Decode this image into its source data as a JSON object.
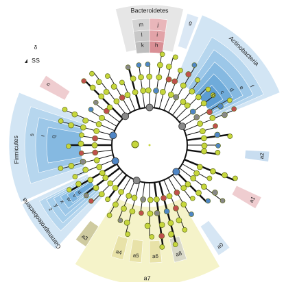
{
  "legend": [
    {
      "symbol": "δ"
    },
    {
      "symbol": "SS"
    }
  ],
  "clades": [
    {
      "label": "Bacteroidetes"
    },
    {
      "label": "m"
    },
    {
      "label": "j"
    },
    {
      "label": "l"
    },
    {
      "label": "i"
    },
    {
      "label": "k"
    },
    {
      "label": "h"
    },
    {
      "label": "g"
    },
    {
      "label": "Actinobacteria"
    },
    {
      "label": "f"
    },
    {
      "label": "e"
    },
    {
      "label": "d"
    },
    {
      "label": "c"
    },
    {
      "label": "b"
    },
    {
      "label": "n"
    },
    {
      "label": "Firmicutes"
    },
    {
      "label": "s"
    },
    {
      "label": "r"
    },
    {
      "label": "q"
    },
    {
      "label": "Gammaproteobacteria"
    },
    {
      "label": "z"
    },
    {
      "label": "y"
    },
    {
      "label": "x"
    },
    {
      "label": "w"
    },
    {
      "label": "v"
    },
    {
      "label": "u"
    },
    {
      "label": "a7"
    },
    {
      "label": "a3"
    },
    {
      "label": "a4"
    },
    {
      "label": "a5"
    },
    {
      "label": "a6"
    },
    {
      "label": "a8"
    },
    {
      "label": "a0"
    },
    {
      "label": "a1"
    },
    {
      "label": "a2"
    }
  ]
}
